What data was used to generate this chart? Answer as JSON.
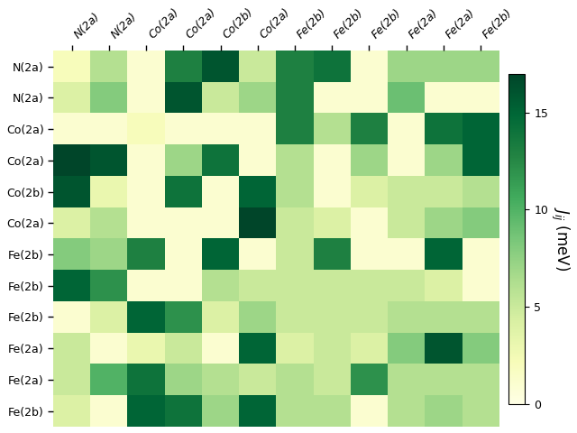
{
  "col_labels": [
    "N(2a)",
    "N(2a)",
    "Co(2a)",
    "Co(2a)",
    "Co(2b)",
    "Co(2a)",
    "Fe(2b)",
    "Fe(2b)",
    "Fe(2b)",
    "Fe(2a)",
    "Fe(2a)",
    "Fe(2b)"
  ],
  "row_labels": [
    "N(2a)",
    "N(2a)",
    "Co(2a)",
    "Co(2a)",
    "Co(2b)",
    "Co(2a)",
    "Fe(2b)",
    "Fe(2b)",
    "Fe(2b)",
    "Fe(2a)",
    "Fe(2a)",
    "Fe(2b)"
  ],
  "matrix": [
    [
      2,
      6,
      1,
      13,
      16,
      5,
      13,
      14,
      1,
      7,
      7,
      7
    ],
    [
      4,
      8,
      1,
      16,
      5,
      7,
      13,
      1,
      1,
      9,
      1,
      1
    ],
    [
      1,
      1,
      2,
      1,
      1,
      1,
      13,
      6,
      13,
      1,
      14,
      15
    ],
    [
      17,
      16,
      1,
      7,
      14,
      1,
      6,
      1,
      7,
      1,
      7,
      15
    ],
    [
      16,
      3,
      1,
      14,
      1,
      15,
      6,
      1,
      4,
      5,
      5,
      6
    ],
    [
      4,
      6,
      1,
      1,
      1,
      17,
      5,
      4,
      1,
      5,
      7,
      8
    ],
    [
      8,
      7,
      13,
      1,
      15,
      1,
      5,
      13,
      1,
      1,
      15,
      1
    ],
    [
      15,
      12,
      1,
      1,
      6,
      5,
      5,
      5,
      5,
      5,
      4,
      1
    ],
    [
      1,
      4,
      15,
      12,
      4,
      7,
      5,
      5,
      5,
      6,
      6,
      6
    ],
    [
      5,
      1,
      3,
      5,
      1,
      15,
      4,
      5,
      4,
      8,
      16,
      8
    ],
    [
      5,
      10,
      14,
      7,
      6,
      5,
      6,
      5,
      12,
      6,
      6,
      6
    ],
    [
      4,
      1,
      15,
      14,
      7,
      15,
      6,
      6,
      1,
      6,
      7,
      6
    ]
  ],
  "vmin": 0,
  "vmax": 17,
  "cbar_label": "$J_{ij}$ (meV)",
  "cbar_ticks": [
    0,
    5,
    10,
    15
  ],
  "cmap": "YlGn",
  "figsize": [
    6.4,
    4.8
  ],
  "dpi": 100
}
